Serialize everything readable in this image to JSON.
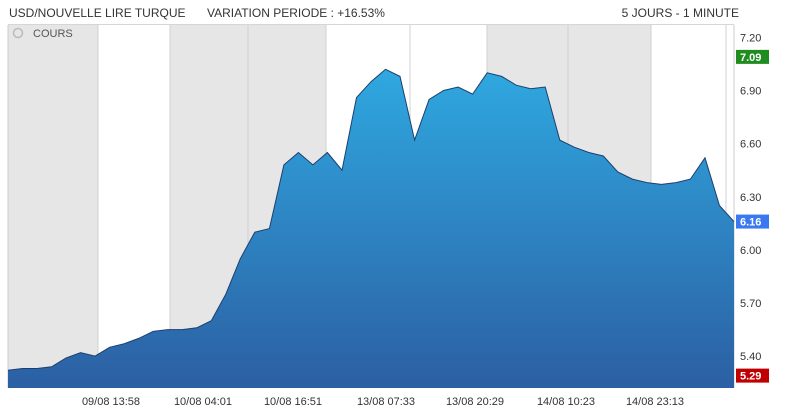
{
  "header": {
    "title": "USD/NOUVELLE LIRE TURQUE",
    "variation": "VARIATION PERIODE : +16.53%",
    "period": "5 JOURS - 1 MINUTE"
  },
  "chart_data": {
    "type": "area",
    "series": [
      {
        "name": "COURS",
        "x": [
          0,
          2,
          4,
          6,
          8,
          10,
          12,
          14,
          16,
          18,
          20,
          22,
          24,
          26,
          28,
          30,
          32,
          34,
          36,
          38,
          40,
          42,
          44,
          46,
          48,
          50,
          52,
          54,
          56,
          58,
          60,
          62,
          64,
          66,
          68,
          70,
          72,
          74,
          76,
          78,
          80,
          82,
          84,
          86,
          88,
          90,
          92,
          94,
          96,
          98,
          100
        ],
        "values": [
          5.32,
          5.33,
          5.33,
          5.34,
          5.39,
          5.42,
          5.4,
          5.45,
          5.47,
          5.5,
          5.54,
          5.55,
          5.55,
          5.56,
          5.6,
          5.75,
          5.95,
          6.1,
          6.12,
          6.48,
          6.55,
          6.48,
          6.55,
          6.45,
          6.86,
          6.95,
          7.02,
          6.98,
          6.62,
          6.85,
          6.9,
          6.92,
          6.88,
          7.0,
          6.98,
          6.93,
          6.91,
          6.92,
          6.62,
          6.58,
          6.55,
          6.53,
          6.44,
          6.4,
          6.38,
          6.37,
          6.38,
          6.4,
          6.52,
          6.25,
          6.16
        ]
      }
    ],
    "x_tick_labels": [
      "09/08 13:58",
      "10/08 04:01",
      "10/08 16:51",
      "13/08 07:33",
      "13/08 20:29",
      "14/08 10:23",
      "14/08 23:13"
    ],
    "y_ticks": [
      5.4,
      5.7,
      6.0,
      6.3,
      6.6,
      6.9,
      7.2
    ],
    "y_tick_labels": [
      "5.40",
      "5.70",
      "6.00",
      "6.30",
      "6.60",
      "6.90",
      "7.20"
    ],
    "ylim": [
      5.22,
      7.27
    ],
    "markers": [
      {
        "label": "7.09",
        "value": 7.09,
        "color": "#1e8c1e"
      },
      {
        "label": "6.16",
        "value": 6.16,
        "color": "#3a78f2"
      },
      {
        "label": "5.29",
        "value": 5.29,
        "color": "#c00000"
      }
    ],
    "grid": true,
    "session_shading": true,
    "area_color_top": "#2fa8e0",
    "area_color_bottom": "#2c5fa3",
    "line_color": "#1d3f6e"
  }
}
